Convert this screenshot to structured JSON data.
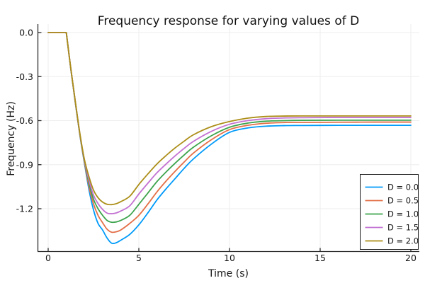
{
  "figure": {
    "title": "Frequency response for varying values of D",
    "xlabel": "Time (s)",
    "ylabel": "Frequency (Hz)",
    "background_color": "#ffffff",
    "axis_color": "#2b2b2b",
    "grid_color": "#eeeeee",
    "text_color": "#151515",
    "legend_border_color": "#1a1a1a"
  },
  "chart_data": {
    "type": "line",
    "title": "Frequency response for varying values of D",
    "xlabel": "Time (s)",
    "ylabel": "Frequency (Hz)",
    "xlim": [
      -0.59,
      20.47
    ],
    "ylim": [
      -1.49,
      0.058
    ],
    "grid": true,
    "legend_position": "bottom-right",
    "xticks": [
      {
        "v": 0,
        "label": "0"
      },
      {
        "v": 5,
        "label": "5"
      },
      {
        "v": 10,
        "label": "10"
      },
      {
        "v": 15,
        "label": "15"
      },
      {
        "v": 20,
        "label": "20"
      }
    ],
    "yticks": [
      {
        "v": 0.0,
        "label": "0.0"
      },
      {
        "v": -0.3,
        "label": "-0.3"
      },
      {
        "v": -0.6,
        "label": "-0.6"
      },
      {
        "v": -0.9,
        "label": "-0.9"
      },
      {
        "v": -1.2,
        "label": "-1.2"
      }
    ],
    "x": [
      0,
      1,
      1.25,
      1.5,
      1.75,
      2,
      2.25,
      2.5,
      2.75,
      3,
      3.25,
      3.5,
      3.75,
      4,
      4.5,
      5,
      5.5,
      6,
      6.5,
      7,
      7.5,
      8,
      9,
      10,
      11,
      12,
      13,
      14,
      16,
      18,
      20
    ],
    "series": [
      {
        "name": "D = 0.0",
        "color": "#009AF9",
        "values": [
          0,
          0,
          -0.25,
          -0.48,
          -0.7,
          -0.89,
          -1.07,
          -1.208,
          -1.3,
          -1.345,
          -1.4,
          -1.435,
          -1.432,
          -1.415,
          -1.375,
          -1.31,
          -1.228,
          -1.14,
          -1.065,
          -0.995,
          -0.925,
          -0.862,
          -0.76,
          -0.68,
          -0.65,
          -0.638,
          -0.634,
          -0.633,
          -0.632,
          -0.632,
          -0.632
        ]
      },
      {
        "name": "D = 0.5",
        "color": "#E36F47",
        "values": [
          0,
          0,
          -0.249,
          -0.478,
          -0.697,
          -0.885,
          -1.05,
          -1.167,
          -1.245,
          -1.295,
          -1.34,
          -1.36,
          -1.357,
          -1.345,
          -1.3,
          -1.245,
          -1.168,
          -1.085,
          -1.012,
          -0.945,
          -0.882,
          -0.822,
          -0.73,
          -0.661,
          -0.632,
          -0.618,
          -0.613,
          -0.612,
          -0.611,
          -0.61,
          -0.61
        ]
      },
      {
        "name": "D = 1.0",
        "color": "#3DA44D",
        "values": [
          0,
          0,
          -0.248,
          -0.476,
          -0.694,
          -0.878,
          -1.025,
          -1.135,
          -1.2,
          -1.245,
          -1.28,
          -1.292,
          -1.29,
          -1.28,
          -1.245,
          -1.17,
          -1.093,
          -1.015,
          -0.95,
          -0.89,
          -0.834,
          -0.782,
          -0.703,
          -0.645,
          -0.617,
          -0.604,
          -0.6,
          -0.598,
          -0.597,
          -0.597,
          -0.597
        ]
      },
      {
        "name": "D = 1.5",
        "color": "#C371D2",
        "values": [
          0,
          0,
          -0.247,
          -0.474,
          -0.691,
          -0.872,
          -1.005,
          -1.107,
          -1.165,
          -1.205,
          -1.23,
          -1.234,
          -1.229,
          -1.216,
          -1.18,
          -1.1,
          -1.026,
          -0.955,
          -0.896,
          -0.84,
          -0.789,
          -0.742,
          -0.673,
          -0.625,
          -0.6,
          -0.587,
          -0.582,
          -0.58,
          -0.578,
          -0.578,
          -0.578
        ]
      },
      {
        "name": "D = 2.0",
        "color": "#AC8E18",
        "values": [
          0,
          0,
          -0.246,
          -0.472,
          -0.688,
          -0.865,
          -0.982,
          -1.073,
          -1.125,
          -1.155,
          -1.17,
          -1.172,
          -1.166,
          -1.152,
          -1.115,
          -1.035,
          -0.963,
          -0.895,
          -0.838,
          -0.786,
          -0.74,
          -0.697,
          -0.641,
          -0.606,
          -0.583,
          -0.572,
          -0.569,
          -0.568,
          -0.568,
          -0.568,
          -0.568
        ]
      }
    ]
  }
}
